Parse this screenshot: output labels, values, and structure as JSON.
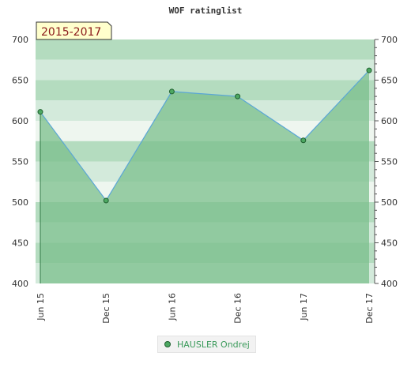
{
  "chart_data": {
    "type": "area",
    "title": "WOF ratinglist",
    "period_label": "2015-2017",
    "categories": [
      "Jun 15",
      "Dec 15",
      "Jun 16",
      "Dec 16",
      "Jun 17",
      "Dec 17"
    ],
    "x_positions": [
      0,
      1,
      2,
      3,
      4,
      5
    ],
    "series": [
      {
        "name": "HAUSLER Ondrej",
        "values": [
          611,
          502,
          636,
          630,
          576,
          662
        ]
      }
    ],
    "ylim": [
      400,
      700
    ],
    "yticks": [
      400,
      450,
      500,
      550,
      600,
      650,
      700
    ],
    "y_axis_left": true,
    "y_axis_right": true,
    "grid": "alternating horizontal bands",
    "legend_position": "bottom-center",
    "colors": {
      "line": "#5aa6d6",
      "marker_fill": "#4da862",
      "marker_stroke": "#1f5f2f",
      "area_fill": "#7bbf8c",
      "band_dark": "#b4dcbf",
      "band_light": "#d3eadb",
      "band_lightest": "#eef6ef",
      "badge_bg": "#ffffcc",
      "badge_text": "#8b1a1a",
      "legend_text": "#3a9a5a"
    }
  }
}
